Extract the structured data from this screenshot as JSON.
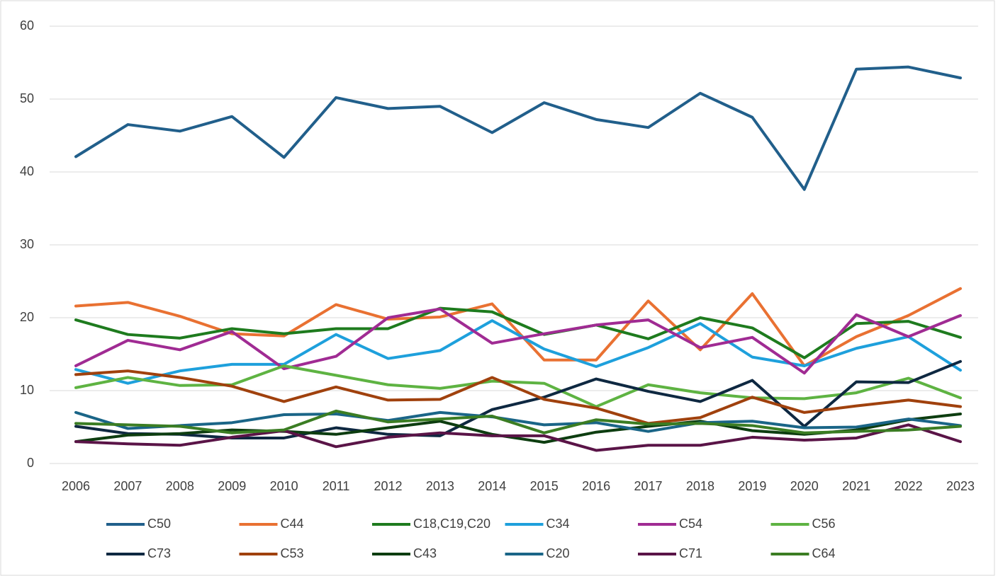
{
  "chart_data": {
    "type": "line",
    "categories": [
      "2006",
      "2007",
      "2008",
      "2009",
      "2010",
      "2011",
      "2012",
      "2013",
      "2014",
      "2015",
      "2016",
      "2017",
      "2018",
      "2019",
      "2020",
      "2021",
      "2022",
      "2023"
    ],
    "ylim": [
      0,
      60
    ],
    "yticks": [
      0,
      10,
      20,
      30,
      40,
      50,
      60
    ],
    "grid": true,
    "legend": "bottom",
    "series": [
      {
        "name": "C50",
        "color": "#215f8b",
        "values": [
          42.1,
          46.5,
          45.6,
          47.6,
          42.0,
          50.2,
          48.7,
          49.0,
          45.4,
          49.5,
          47.2,
          46.1,
          50.8,
          47.5,
          37.6,
          54.1,
          54.4,
          52.9
        ]
      },
      {
        "name": "C44",
        "color": "#e97132",
        "values": [
          21.6,
          22.1,
          20.2,
          17.8,
          17.5,
          21.8,
          19.8,
          20.1,
          21.9,
          14.2,
          14.2,
          22.3,
          15.6,
          23.3,
          13.4,
          17.4,
          20.3,
          24.0
        ]
      },
      {
        "name": "C18,C19,C20",
        "color": "#1e7b1e",
        "values": [
          19.7,
          17.7,
          17.2,
          18.5,
          17.8,
          18.5,
          18.5,
          21.3,
          20.8,
          17.7,
          19.0,
          17.1,
          20.0,
          18.6,
          14.5,
          19.2,
          19.5,
          17.3
        ]
      },
      {
        "name": "C34",
        "color": "#1ea0dc",
        "values": [
          12.9,
          11.0,
          12.7,
          13.6,
          13.6,
          17.7,
          14.4,
          15.5,
          19.6,
          15.7,
          13.3,
          15.9,
          19.2,
          14.6,
          13.4,
          15.8,
          17.4,
          12.8
        ]
      },
      {
        "name": "C54",
        "color": "#a02b93",
        "values": [
          13.4,
          16.9,
          15.6,
          18.1,
          13.0,
          14.7,
          20.0,
          21.2,
          16.5,
          17.8,
          19.0,
          19.7,
          15.9,
          17.3,
          12.4,
          20.4,
          17.4,
          20.3
        ]
      },
      {
        "name": "C56",
        "color": "#5eb342",
        "values": [
          10.4,
          11.8,
          10.7,
          10.8,
          13.4,
          12.1,
          10.8,
          10.3,
          11.3,
          11.0,
          7.8,
          10.8,
          9.7,
          9.0,
          8.9,
          9.7,
          11.7,
          9.0
        ]
      },
      {
        "name": "C73",
        "color": "#0e2841",
        "values": [
          5.1,
          4.1,
          4.0,
          3.5,
          3.5,
          4.9,
          4.0,
          3.8,
          7.4,
          9.1,
          11.6,
          9.9,
          8.5,
          11.4,
          5.1,
          11.2,
          11.1,
          14.0
        ]
      },
      {
        "name": "C53",
        "color": "#a0410d",
        "values": [
          12.2,
          12.7,
          11.8,
          10.6,
          8.5,
          10.5,
          8.7,
          8.8,
          11.8,
          8.8,
          7.6,
          5.5,
          6.3,
          9.1,
          7.0,
          7.9,
          8.7,
          7.8
        ]
      },
      {
        "name": "C43",
        "color": "#0d3d10",
        "values": [
          3.0,
          3.9,
          4.1,
          4.6,
          4.4,
          4.0,
          4.9,
          5.8,
          4.0,
          2.9,
          4.3,
          5.1,
          5.8,
          4.5,
          4.0,
          4.6,
          6.0,
          6.8
        ]
      },
      {
        "name": "C20",
        "color": "#1a6587",
        "values": [
          7.0,
          4.8,
          5.2,
          5.6,
          6.7,
          6.8,
          5.9,
          7.0,
          6.4,
          5.3,
          5.6,
          4.4,
          5.6,
          5.8,
          4.9,
          5.0,
          6.1,
          5.2
        ]
      },
      {
        "name": "C71",
        "color": "#5a1447",
        "values": [
          3.0,
          2.7,
          2.5,
          3.6,
          4.5,
          2.3,
          3.6,
          4.2,
          3.8,
          3.8,
          1.8,
          2.5,
          2.5,
          3.6,
          3.2,
          3.5,
          5.3,
          3.0
        ]
      },
      {
        "name": "C64",
        "color": "#3b7d23",
        "values": [
          5.5,
          5.3,
          5.1,
          4.2,
          4.6,
          7.2,
          5.7,
          6.1,
          6.5,
          4.2,
          6.0,
          5.4,
          5.5,
          5.2,
          4.2,
          4.4,
          4.6,
          5.1
        ]
      }
    ]
  }
}
